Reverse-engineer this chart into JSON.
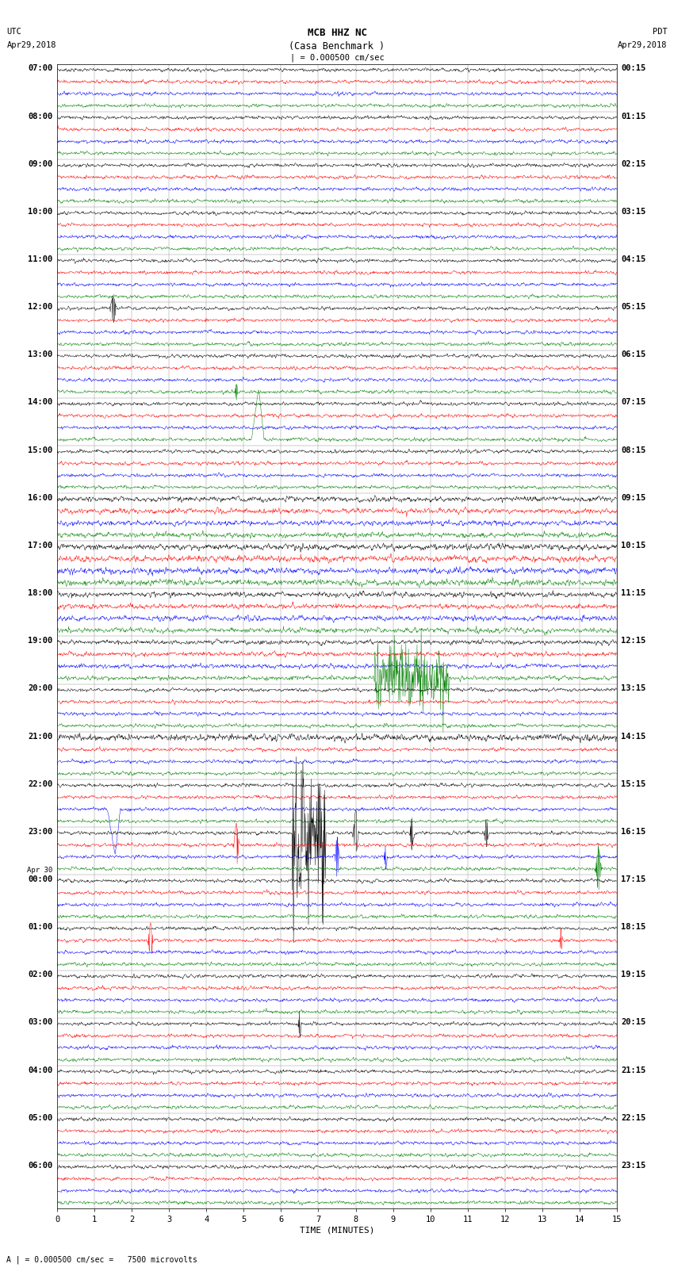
{
  "title_line1": "MCB HHZ NC",
  "title_line2": "(Casa Benchmark )",
  "scale_label": "| = 0.000500 cm/sec",
  "left_header_line1": "UTC",
  "left_header_line2": "Apr29,2018",
  "right_header_line1": "PDT",
  "right_header_line2": "Apr29,2018",
  "xlabel": "TIME (MINUTES)",
  "bottom_note": "A | = 0.000500 cm/sec =   7500 microvolts",
  "utc_labels": [
    "07:00",
    "08:00",
    "09:00",
    "10:00",
    "11:00",
    "12:00",
    "13:00",
    "14:00",
    "15:00",
    "16:00",
    "17:00",
    "18:00",
    "19:00",
    "20:00",
    "21:00",
    "22:00",
    "23:00",
    "Apr 30|00:00",
    "01:00",
    "02:00",
    "03:00",
    "04:00",
    "05:00",
    "06:00"
  ],
  "pdt_labels": [
    "00:15",
    "01:15",
    "02:15",
    "03:15",
    "04:15",
    "05:15",
    "06:15",
    "07:15",
    "08:15",
    "09:15",
    "10:15",
    "11:15",
    "12:15",
    "13:15",
    "14:15",
    "15:15",
    "16:15",
    "17:15",
    "18:15",
    "19:15",
    "20:15",
    "21:15",
    "22:15",
    "23:15"
  ],
  "num_rows": 24,
  "traces_per_row": 4,
  "trace_colors": [
    "black",
    "red",
    "blue",
    "green"
  ],
  "xmin": 0,
  "xmax": 15,
  "background_color": "#ffffff",
  "fig_width": 8.5,
  "fig_height": 16.13,
  "dpi": 100
}
